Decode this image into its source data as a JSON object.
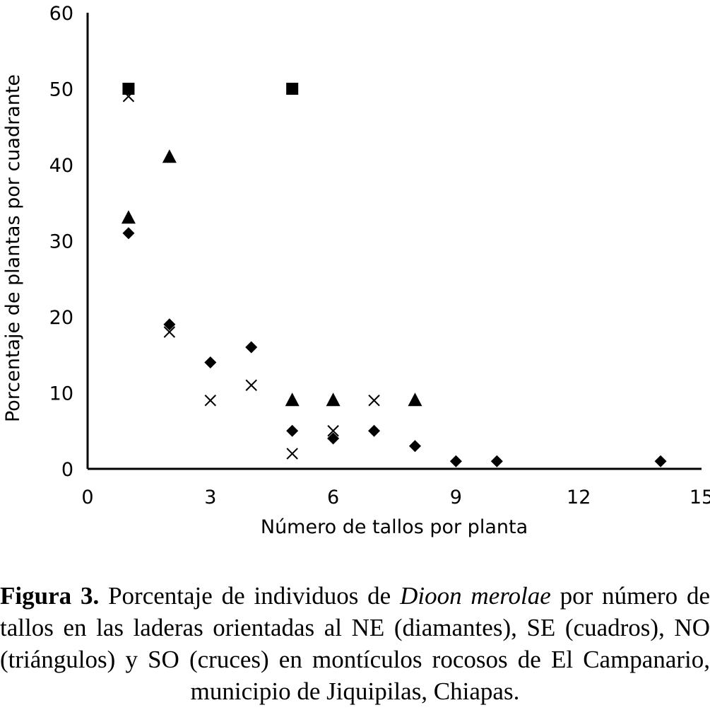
{
  "chart_data": {
    "type": "scatter",
    "title": "",
    "xlabel": "Número de tallos por planta",
    "ylabel": "Porcentaje de plantas por cuadrante",
    "xlim": [
      0,
      15
    ],
    "ylim": [
      0,
      60
    ],
    "x_ticks": [
      "0",
      "3",
      "6",
      "9",
      "12",
      "15"
    ],
    "y_ticks": [
      "0",
      "10",
      "20",
      "30",
      "40",
      "50",
      "60"
    ],
    "grid": false,
    "legend": "none",
    "series": [
      {
        "marker": "diamond",
        "points": [
          [
            1,
            31
          ],
          [
            2,
            19
          ],
          [
            3,
            14
          ],
          [
            4,
            16
          ],
          [
            5,
            5
          ],
          [
            6,
            4
          ],
          [
            7,
            5
          ],
          [
            8,
            3
          ],
          [
            9,
            1
          ],
          [
            10,
            1
          ],
          [
            14,
            1
          ]
        ]
      },
      {
        "marker": "square",
        "points": [
          [
            1,
            50
          ],
          [
            5,
            50
          ]
        ]
      },
      {
        "marker": "triangle",
        "points": [
          [
            1,
            33
          ],
          [
            2,
            41
          ],
          [
            5,
            9
          ],
          [
            6,
            9
          ],
          [
            8,
            9
          ]
        ]
      },
      {
        "marker": "cross",
        "points": [
          [
            1,
            49
          ],
          [
            2,
            18
          ],
          [
            3,
            9
          ],
          [
            4,
            11
          ],
          [
            5,
            2
          ],
          [
            6,
            5
          ],
          [
            7,
            9
          ]
        ]
      }
    ]
  },
  "caption": {
    "label": "Figura 3.",
    "text_before": " Porcentaje de individuos de ",
    "species": "Dioon merolae",
    "text_after": " por número de tallos en las laderas orientadas al NE (diamantes), SE (cuadros), NO (triángulos) y SO (cruces) en montículos rocosos de El Campanario, municipio de Jiquipilas, Chiapas."
  }
}
